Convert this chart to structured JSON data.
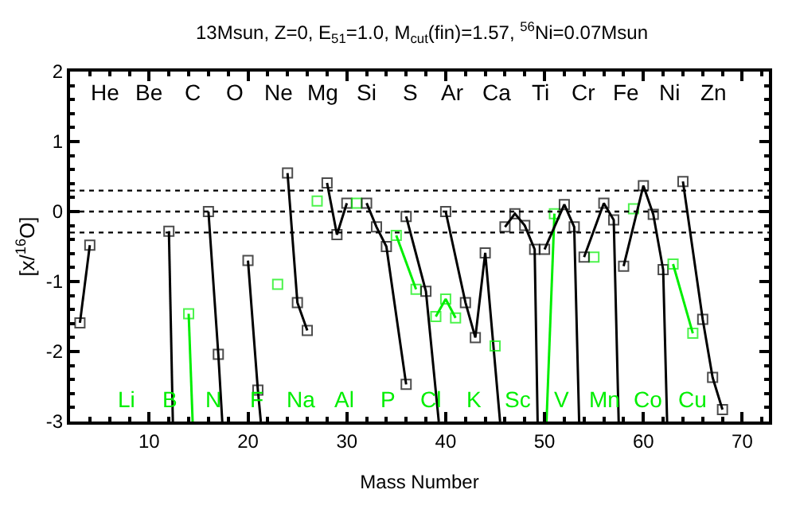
{
  "chart_data": {
    "type": "line",
    "title": "13Msun, Z=0, E$_{51}$=1.0, M$_{cut}$(fin)=1.57, $^{56}$Ni=0.07Msun",
    "xlabel": "Mass Number",
    "ylabel": "[x/$^{16}$O]",
    "xlim": [
      2,
      72.7
    ],
    "xticks": [
      10,
      20,
      30,
      40,
      50,
      60,
      70
    ],
    "ylim": [
      -3,
      2
    ],
    "yticks": [
      -3,
      -2,
      -1,
      0,
      1,
      2
    ],
    "marker": "square",
    "line_style": "solid",
    "series": [
      {
        "color": "#000000",
        "x": [
          3,
          4
        ],
        "values": [
          -1.59,
          -0.48
        ]
      },
      {
        "color": "#000000",
        "x": [
          12,
          12.4
        ],
        "values": [
          -0.28,
          -3
        ]
      },
      {
        "color": "#00ee00",
        "x": [
          14,
          14.4
        ],
        "values": [
          -1.46,
          -3
        ]
      },
      {
        "color": "#000000",
        "x": [
          16,
          17,
          17.4
        ],
        "values": [
          0.0,
          -2.04,
          -3
        ]
      },
      {
        "color": "#000000",
        "x": [
          20,
          21,
          21.3
        ],
        "values": [
          -0.7,
          -2.55,
          -3
        ]
      },
      {
        "color": "#00ee00",
        "x": [
          23
        ],
        "values": [
          -1.04
        ]
      },
      {
        "color": "#000000",
        "x": [
          24,
          25,
          26
        ],
        "values": [
          0.55,
          -1.3,
          -1.7
        ]
      },
      {
        "color": "#00ee00",
        "x": [
          27
        ],
        "values": [
          0.15
        ]
      },
      {
        "color": "#000000",
        "x": [
          28,
          29,
          30
        ],
        "values": [
          0.41,
          -0.33,
          0.12
        ]
      },
      {
        "color": "#00ee00",
        "x": [
          31
        ],
        "values": [
          0.12
        ]
      },
      {
        "color": "#000000",
        "x": [
          32,
          33,
          34,
          36
        ],
        "values": [
          0.12,
          -0.22,
          -0.5,
          -2.47
        ]
      },
      {
        "color": "#00ee00",
        "x": [
          35,
          37
        ],
        "values": [
          -0.34,
          -1.11
        ]
      },
      {
        "color": "#000000",
        "x": [
          36,
          38,
          39.3
        ],
        "values": [
          -0.07,
          -1.14,
          -3
        ]
      },
      {
        "color": "#00ee00",
        "x": [
          39,
          40,
          41
        ],
        "values": [
          -1.5,
          -1.25,
          -1.52
        ]
      },
      {
        "color": "#000000",
        "x": [
          40,
          42,
          43,
          44,
          45.5
        ],
        "values": [
          0.0,
          -1.3,
          -1.8,
          -0.59,
          -3
        ]
      },
      {
        "color": "#00ee00",
        "x": [
          45
        ],
        "values": [
          -1.92
        ]
      },
      {
        "color": "#000000",
        "x": [
          46,
          47,
          48,
          49,
          49.3
        ],
        "values": [
          -0.22,
          -0.03,
          -0.2,
          -0.54,
          -3
        ]
      },
      {
        "color": "#00ee00",
        "x": [
          50.2,
          51
        ],
        "values": [
          -3,
          -0.03
        ]
      },
      {
        "color": "#000000",
        "x": [
          50,
          52,
          53,
          53.5
        ],
        "values": [
          -0.54,
          0.1,
          -0.22,
          -3
        ]
      },
      {
        "color": "#00ee00",
        "x": [
          55
        ],
        "values": [
          -0.65
        ]
      },
      {
        "color": "#000000",
        "x": [
          54,
          56,
          57,
          57.5
        ],
        "values": [
          -0.65,
          0.12,
          -0.12,
          -3
        ]
      },
      {
        "color": "#00ee00",
        "x": [
          59
        ],
        "values": [
          0.04
        ]
      },
      {
        "color": "#000000",
        "x": [
          58,
          60,
          61,
          62,
          62.4
        ],
        "values": [
          -0.78,
          0.37,
          -0.04,
          -0.83,
          -3
        ]
      },
      {
        "color": "#00ee00",
        "x": [
          63,
          65
        ],
        "values": [
          -0.75,
          -1.74
        ]
      },
      {
        "color": "#000000",
        "x": [
          64,
          66,
          67,
          68
        ],
        "values": [
          0.43,
          -1.54,
          -2.37,
          -2.83
        ]
      }
    ],
    "ref_lines": [
      {
        "axis": "y",
        "value": 0.3,
        "line_style": "dotted",
        "color": "#000000"
      },
      {
        "axis": "y",
        "value": 0,
        "line_style": "dotted",
        "color": "#000000"
      },
      {
        "axis": "y",
        "value": -0.3,
        "line_style": "dotted",
        "color": "#000000"
      }
    ],
    "annotations": [
      "He",
      "Li",
      "Be",
      "B",
      "C",
      "N",
      "O",
      "F",
      "Ne",
      "Na",
      "Mg",
      "Al",
      "Si",
      "P",
      "S",
      "Cl",
      "Ar",
      "K",
      "Ca",
      "Sc",
      "Ti",
      "V",
      "Cr",
      "Mn",
      "Fe",
      "Co",
      "Ni",
      "Cu",
      "Zn"
    ]
  }
}
